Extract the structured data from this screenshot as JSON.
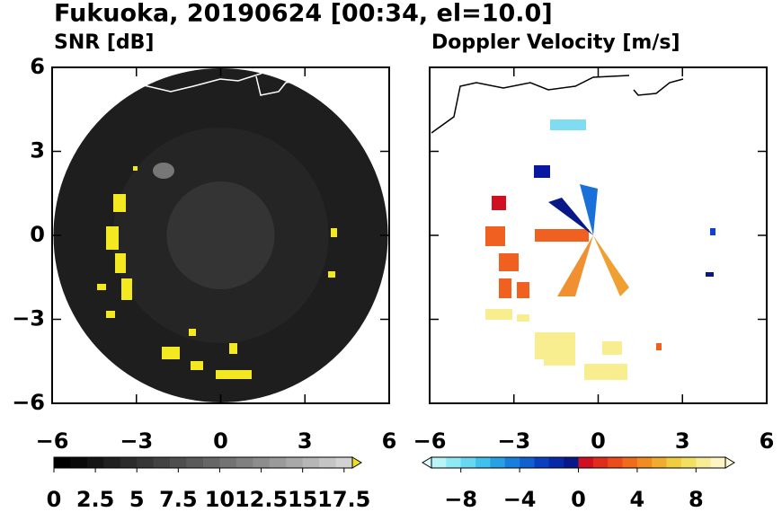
{
  "title": "Fukuoka, 20190624 [00:34, el=10.0]",
  "chart_data": [
    {
      "type": "heatmap",
      "title": "SNR [dB]",
      "xlim": [
        -6,
        6
      ],
      "ylim": [
        -6,
        6
      ],
      "xticks": [
        {
          "value": -6,
          "label": "−6"
        },
        {
          "value": -3,
          "label": "−3"
        },
        0,
        3,
        6
      ],
      "yticks": [
        {
          "value": -6,
          "label": "−6"
        },
        {
          "value": -3,
          "label": "−3"
        },
        0,
        3,
        6
      ],
      "ytick_labels": true,
      "colorbar": {
        "lim": [
          0,
          18
        ],
        "ticks": [
          0,
          2.5,
          5,
          7.5,
          10,
          12.5,
          15,
          17.5
        ],
        "extend": "max",
        "colors": [
          "#000000",
          "#0a0a0a",
          "#151515",
          "#202020",
          "#2b2b2b",
          "#363636",
          "#424242",
          "#4e4e4e",
          "#5a5a5a",
          "#666666",
          "#737373",
          "#808080",
          "#8d8d8d",
          "#9a9a9a",
          "#a8a8a8",
          "#b6b6b6",
          "#c4c4c4",
          "#d2d2d2"
        ],
        "extend_color": "#f0e020"
      }
    },
    {
      "type": "heatmap",
      "title": "Doppler Velocity [m/s]",
      "xlim": [
        -6,
        6
      ],
      "ylim": [
        -6,
        6
      ],
      "xticks": [
        {
          "value": -6,
          "label": "−6"
        },
        {
          "value": -3,
          "label": "−3"
        },
        0,
        3,
        6
      ],
      "yticks": [
        -6,
        -3,
        0,
        3,
        6
      ],
      "ytick_labels": false,
      "colorbar": {
        "lim": [
          -10,
          10
        ],
        "ticks": [
          {
            "value": -8,
            "label": "−8"
          },
          {
            "value": -4,
            "label": "−4"
          },
          0,
          4,
          8
        ],
        "extend": "both",
        "colors": [
          "#b8f4f8",
          "#90e8f4",
          "#68d8f0",
          "#40c0ec",
          "#28a0e4",
          "#1880dc",
          "#1060d0",
          "#0840c0",
          "#0828a8",
          "#081888",
          "#d01020",
          "#e02c1c",
          "#ec4c1c",
          "#f06c1c",
          "#f08c20",
          "#f0ac30",
          "#f0cc40",
          "#f4e060",
          "#f8ec94",
          "#fcf6c4"
        ],
        "extend_color_low": "#d8fcff",
        "extend_color": "#fffad8"
      }
    }
  ]
}
